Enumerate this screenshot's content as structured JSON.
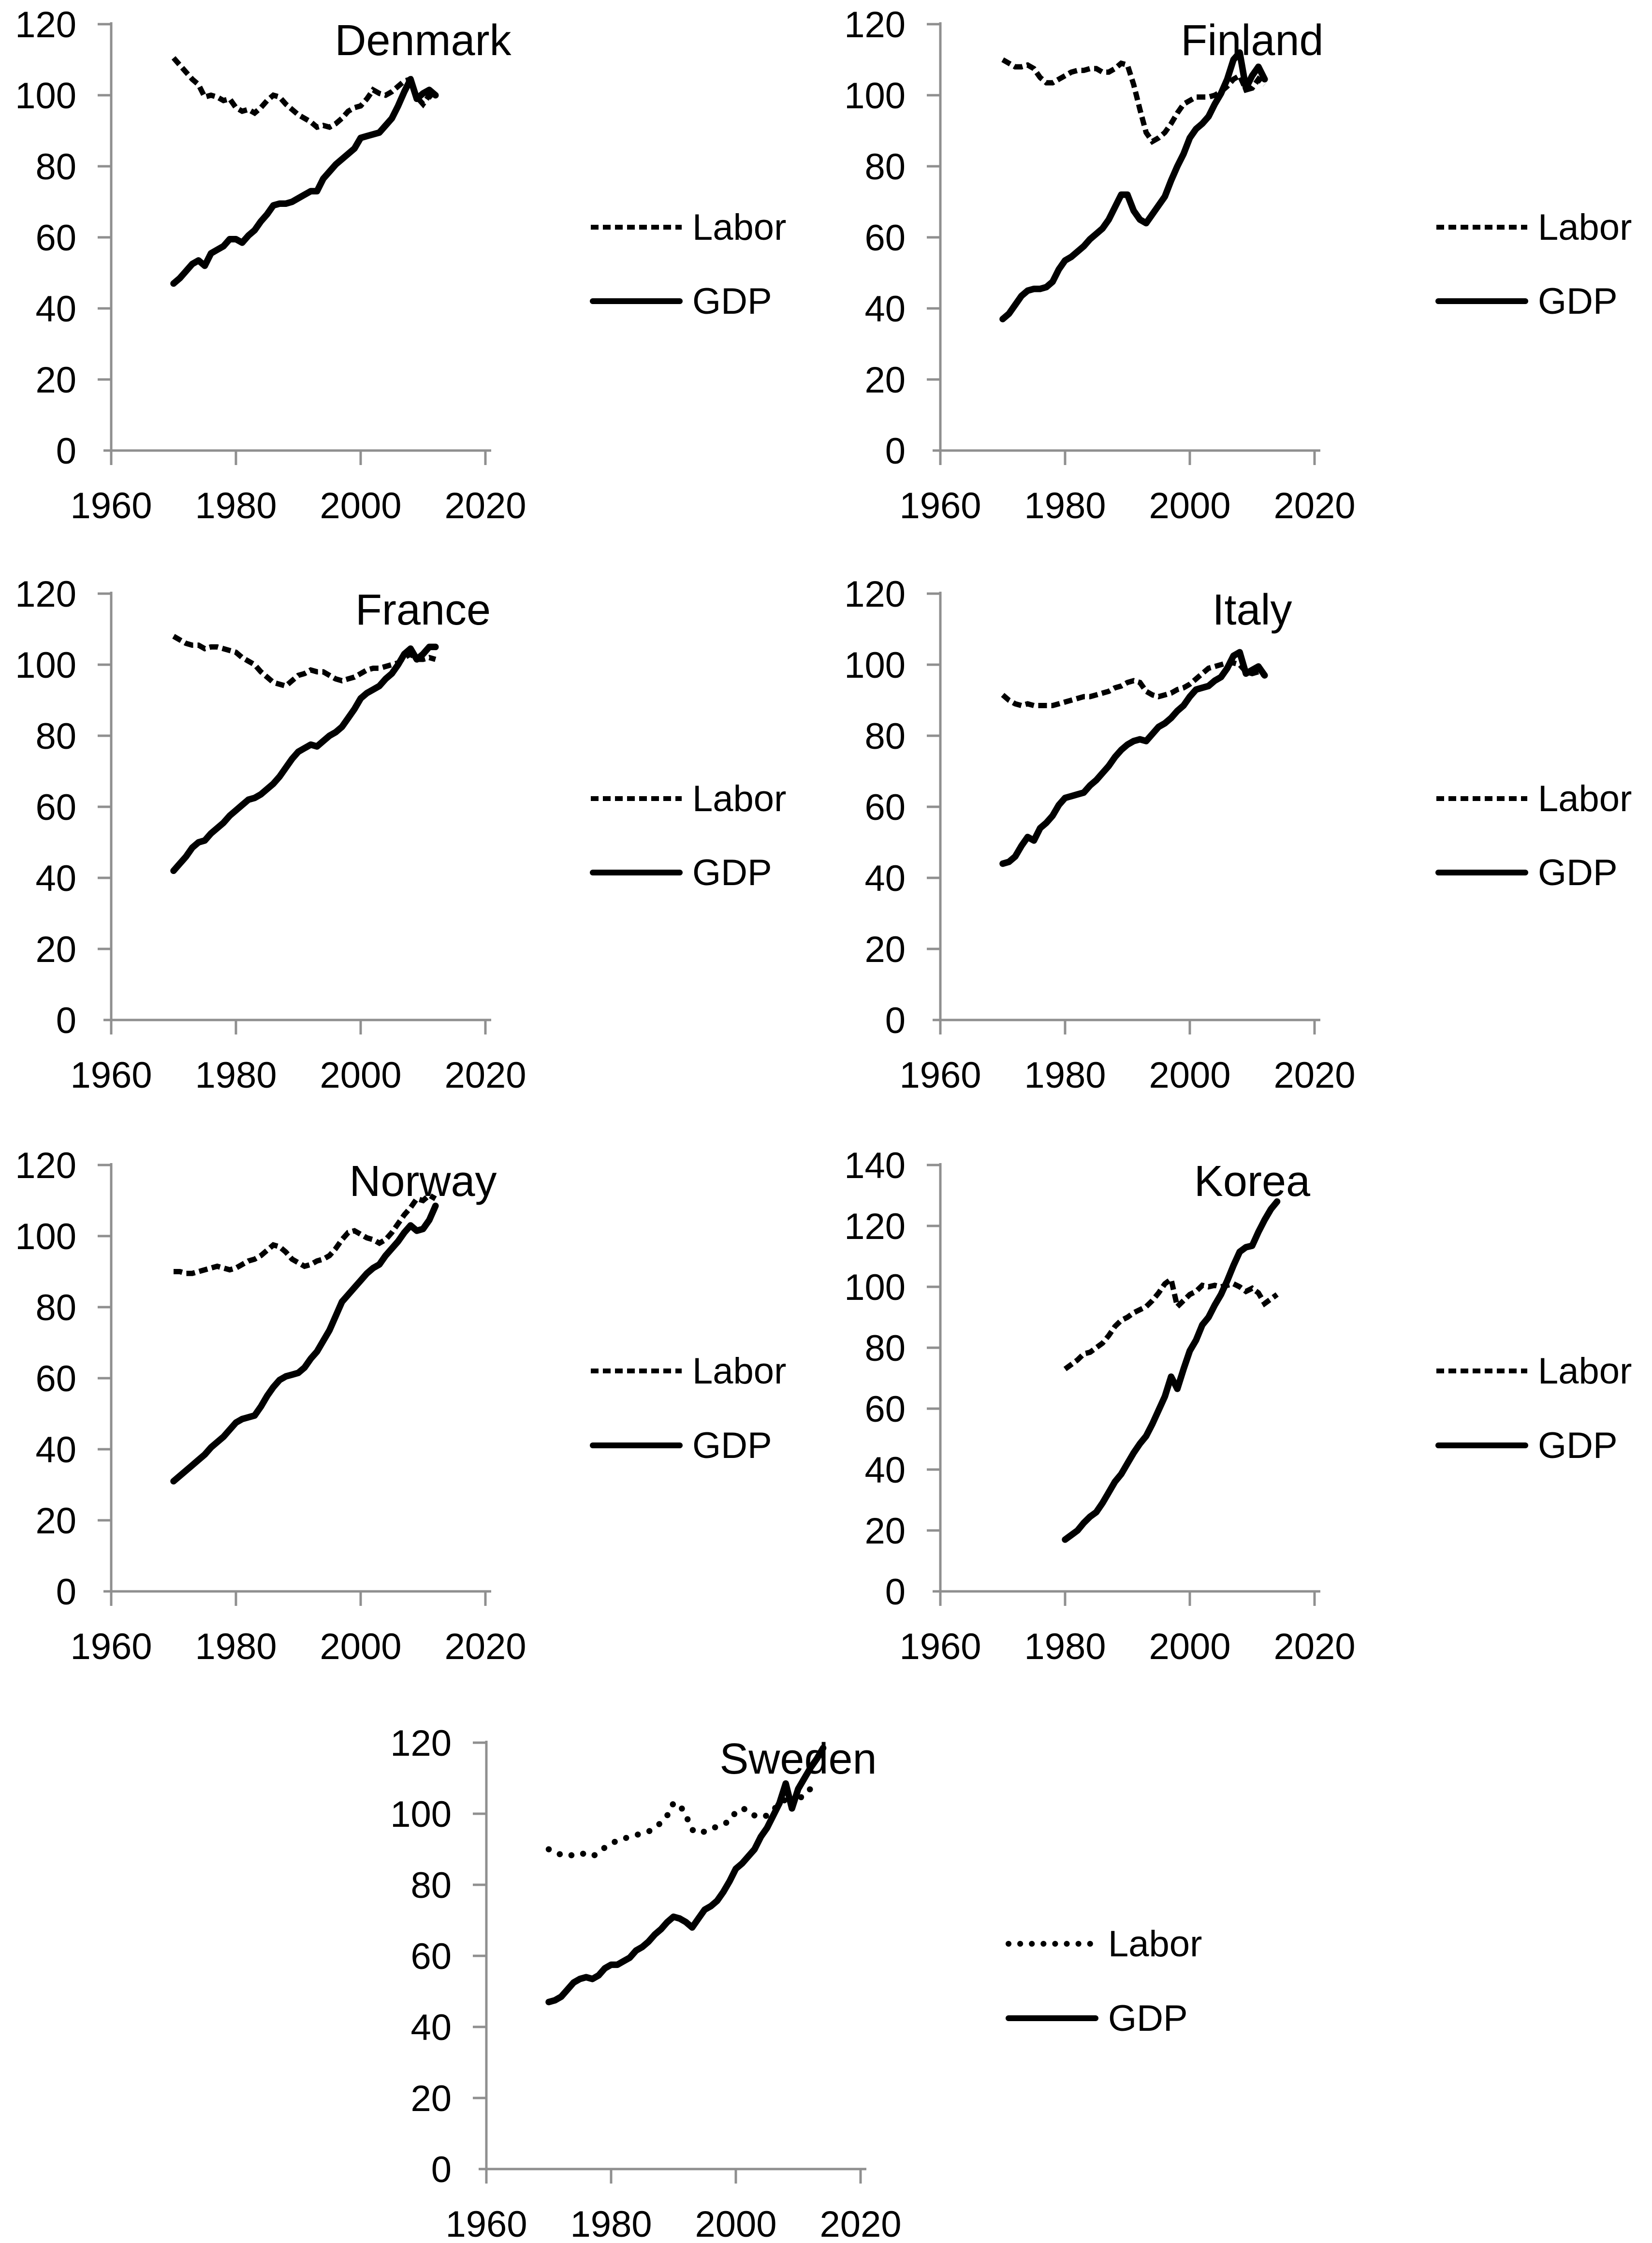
{
  "page": {
    "background": "#ffffff"
  },
  "colors": {
    "line": "#000000",
    "axis": "#8f8f8f",
    "text": "#000000"
  },
  "legend_labels": {
    "labor": "Labor",
    "gdp": "GDP"
  },
  "chart_data": [
    {
      "type": "line",
      "title": "Denmark",
      "xlabel": "",
      "ylabel": "",
      "xlim": [
        1960,
        2020
      ],
      "ylim": [
        0,
        120
      ],
      "x_ticks": [
        1960,
        1980,
        2000,
        2020
      ],
      "y_ticks": [
        0,
        20,
        40,
        60,
        80,
        100,
        120
      ],
      "grid": false,
      "legend_position": "right",
      "series": [
        {
          "name": "Labor",
          "style": "dotted",
          "start_year": 1970,
          "values": [
            110.5,
            108.5,
            106.5,
            104.5,
            103,
            99.5,
            100,
            99.5,
            98.5,
            99,
            96.5,
            95.5,
            96,
            95,
            96.5,
            98.5,
            100,
            99.5,
            97.5,
            96,
            94.5,
            93.5,
            92.5,
            91,
            91.5,
            91,
            92,
            93.5,
            95.5,
            96.5,
            97,
            99,
            101.5,
            100.5,
            100,
            101,
            102.5,
            104,
            104.5,
            99.5,
            97.5,
            100,
            98.5
          ]
        },
        {
          "name": "GDP",
          "style": "solid",
          "start_year": 1970,
          "values": [
            47,
            48.5,
            50.5,
            52.5,
            53.5,
            52,
            55.5,
            56.5,
            57.5,
            59.5,
            59.5,
            58.5,
            60.5,
            62,
            64.5,
            66.5,
            69,
            69.5,
            69.5,
            70,
            71,
            72,
            73,
            73,
            76.5,
            78.5,
            80.5,
            82,
            83.5,
            85,
            88,
            88.5,
            89,
            89.5,
            91.5,
            93.5,
            97,
            101,
            104.5,
            99,
            100.5,
            101.5,
            100
          ]
        }
      ]
    },
    {
      "type": "line",
      "title": "Finland",
      "xlabel": "",
      "ylabel": "",
      "xlim": [
        1960,
        2020
      ],
      "ylim": [
        0,
        120
      ],
      "x_ticks": [
        1960,
        1980,
        2000,
        2020
      ],
      "y_ticks": [
        0,
        20,
        40,
        60,
        80,
        100,
        120
      ],
      "grid": false,
      "legend_position": "right",
      "series": [
        {
          "name": "Labor",
          "style": "dotted",
          "start_year": 1970,
          "values": [
            110,
            109,
            108,
            108,
            108.5,
            107.5,
            105,
            103.5,
            103.5,
            104.5,
            105.5,
            106.5,
            107,
            107,
            107.5,
            107.5,
            106.5,
            106.5,
            107.5,
            109,
            108.5,
            103,
            96,
            89.5,
            87,
            88,
            89.5,
            92,
            95,
            97.5,
            98.5,
            99.5,
            99.5,
            99.5,
            100,
            101,
            102.5,
            104.5,
            105.5,
            101.5,
            102,
            104.5,
            103
          ]
        },
        {
          "name": "GDP",
          "style": "solid",
          "start_year": 1970,
          "values": [
            37,
            38.5,
            41,
            43.5,
            45,
            45.5,
            45.5,
            46,
            47.5,
            51,
            53.5,
            54.5,
            56,
            57.5,
            59.5,
            61,
            62.5,
            65,
            68.5,
            72,
            72,
            67.5,
            65,
            64,
            66.5,
            69,
            71.5,
            76,
            80,
            83.5,
            88,
            90.5,
            92,
            94,
            97.5,
            100.5,
            104.5,
            110,
            112,
            102,
            105.5,
            108,
            104.5
          ]
        }
      ]
    },
    {
      "type": "line",
      "title": "France",
      "xlabel": "",
      "ylabel": "",
      "xlim": [
        1960,
        2020
      ],
      "ylim": [
        0,
        120
      ],
      "x_ticks": [
        1960,
        1980,
        2000,
        2020
      ],
      "y_ticks": [
        0,
        20,
        40,
        60,
        80,
        100,
        120
      ],
      "grid": false,
      "legend_position": "right",
      "series": [
        {
          "name": "Labor",
          "style": "dotted",
          "start_year": 1970,
          "values": [
            108,
            107,
            106,
            105.5,
            105.5,
            104.5,
            105,
            105,
            104.5,
            104,
            103.5,
            102,
            101,
            100,
            98,
            96.5,
            95,
            94.5,
            94,
            95.5,
            97,
            97.5,
            98.5,
            98,
            98,
            97,
            96,
            95.5,
            96,
            96.5,
            97.5,
            98.5,
            99,
            99,
            99.5,
            100,
            100.5,
            102,
            103,
            101.5,
            101.5,
            102,
            101.5
          ]
        },
        {
          "name": "GDP",
          "style": "solid",
          "start_year": 1970,
          "values": [
            42,
            44,
            46,
            48.5,
            50,
            50.5,
            52.5,
            54,
            55.5,
            57.5,
            59,
            60.5,
            62,
            62.5,
            63.5,
            65,
            66.5,
            68.5,
            71,
            73.5,
            75.5,
            76.5,
            77.5,
            77,
            78.5,
            80,
            81,
            82.5,
            85,
            87.5,
            90.5,
            92,
            93,
            94,
            96,
            97.5,
            100,
            103,
            104.5,
            101.5,
            103,
            105,
            105
          ]
        }
      ]
    },
    {
      "type": "line",
      "title": "Italy",
      "xlabel": "",
      "ylabel": "",
      "xlim": [
        1960,
        2020
      ],
      "ylim": [
        0,
        120
      ],
      "x_ticks": [
        1960,
        1980,
        2000,
        2020
      ],
      "y_ticks": [
        0,
        20,
        40,
        60,
        80,
        100,
        120
      ],
      "grid": false,
      "legend_position": "right",
      "series": [
        {
          "name": "Labor",
          "style": "dotted",
          "start_year": 1970,
          "values": [
            91.5,
            90,
            89,
            88.5,
            89,
            88.5,
            88.5,
            88.5,
            88.5,
            89,
            89.5,
            90,
            90.5,
            91,
            91,
            91.5,
            92,
            92.5,
            93.5,
            94,
            95,
            95.5,
            95,
            92.5,
            91.5,
            91,
            91.5,
            92,
            93,
            93.5,
            94.5,
            96,
            97.5,
            99,
            99.5,
            100,
            100.5,
            100.5,
            100,
            98,
            97.5,
            98,
            97
          ]
        },
        {
          "name": "GDP",
          "style": "solid",
          "start_year": 1970,
          "values": [
            44,
            44.5,
            46,
            49,
            51.5,
            50.5,
            54,
            55.5,
            57.5,
            60.5,
            62.5,
            63,
            63.5,
            64,
            66,
            67.5,
            69.5,
            71.5,
            74,
            76,
            77.5,
            78.5,
            79,
            78.5,
            80.5,
            82.5,
            83.5,
            85,
            87,
            88.5,
            91,
            93,
            93.5,
            94,
            95.5,
            96.5,
            99,
            102.5,
            103.5,
            97.5,
            98.5,
            99.5,
            97
          ]
        }
      ]
    },
    {
      "type": "line",
      "title": "Norway",
      "xlabel": "",
      "ylabel": "",
      "xlim": [
        1960,
        2020
      ],
      "ylim": [
        0,
        120
      ],
      "x_ticks": [
        1960,
        1980,
        2000,
        2020
      ],
      "y_ticks": [
        0,
        20,
        40,
        60,
        80,
        100,
        120
      ],
      "grid": false,
      "legend_position": "right",
      "series": [
        {
          "name": "Labor",
          "style": "dotted",
          "start_year": 1970,
          "values": [
            90,
            90,
            89.5,
            89.5,
            90,
            90.5,
            91,
            91.5,
            91,
            90.5,
            91,
            92,
            93,
            93.5,
            94.5,
            96,
            97.5,
            97,
            95.5,
            93.5,
            92.5,
            91.5,
            92,
            93,
            93.5,
            94.5,
            96.5,
            99,
            101,
            101.5,
            100.5,
            99.5,
            99,
            98,
            99,
            101,
            103.5,
            106,
            108,
            110.5,
            110,
            111.5,
            110.5
          ]
        },
        {
          "name": "GDP",
          "style": "solid",
          "start_year": 1970,
          "values": [
            31,
            32.5,
            34,
            35.5,
            37,
            38.5,
            40.5,
            42,
            43.5,
            45.5,
            47.5,
            48.5,
            49,
            49.5,
            52,
            55,
            57.5,
            59.5,
            60.5,
            61,
            61.5,
            63,
            65.5,
            67.5,
            70.5,
            73.5,
            77.5,
            81.5,
            83.5,
            85.5,
            87.5,
            89.5,
            91,
            92,
            94.5,
            96.5,
            98.5,
            101,
            103,
            101.5,
            102,
            104.5,
            108.5
          ]
        }
      ]
    },
    {
      "type": "line",
      "title": "Korea",
      "xlabel": "",
      "ylabel": "",
      "xlim": [
        1960,
        2020
      ],
      "ylim": [
        0,
        140
      ],
      "x_ticks": [
        1960,
        1980,
        2000,
        2020
      ],
      "y_ticks": [
        0,
        20,
        40,
        60,
        80,
        100,
        120,
        140
      ],
      "grid": false,
      "legend_position": "right",
      "series": [
        {
          "name": "Labor",
          "style": "dotted",
          "start_year": 1980,
          "values": [
            73,
            74.5,
            76,
            78,
            78.5,
            80,
            81.5,
            84,
            87,
            89,
            90,
            91.5,
            92.5,
            93.5,
            95.5,
            98,
            101,
            102.5,
            93.5,
            95.5,
            97.5,
            98.5,
            100.5,
            100,
            100.5,
            100,
            100.5,
            101,
            100,
            98.5,
            99.5,
            98,
            94.5,
            96,
            97.5
          ]
        },
        {
          "name": "GDP",
          "style": "solid",
          "start_year": 1980,
          "values": [
            17,
            18.5,
            20,
            22.5,
            24.5,
            26,
            29,
            32.5,
            36,
            38.5,
            42,
            45.5,
            48.5,
            51,
            55,
            59.5,
            64,
            70.5,
            66.5,
            73,
            79,
            82.5,
            87.5,
            90,
            94,
            97.5,
            102,
            107,
            111.5,
            113,
            113.5,
            118,
            122,
            125.5,
            128
          ]
        }
      ]
    },
    {
      "type": "line",
      "title": "Sweden",
      "xlabel": "",
      "ylabel": "",
      "xlim": [
        1960,
        2020
      ],
      "ylim": [
        0,
        120
      ],
      "x_ticks": [
        1960,
        1980,
        2000,
        2020
      ],
      "y_ticks": [
        0,
        20,
        40,
        60,
        80,
        100,
        120
      ],
      "grid": false,
      "legend_position": "right",
      "series": [
        {
          "name": "Labor",
          "style": "dotted-round",
          "start_year": 1970,
          "values": [
            90,
            89,
            88.5,
            88,
            88.5,
            89,
            88.5,
            88,
            89,
            90.5,
            91.5,
            92.5,
            93,
            93.5,
            94,
            94.5,
            95,
            96,
            97.5,
            99.5,
            103,
            102.5,
            99.5,
            95.5,
            94.5,
            95,
            95.5,
            96.5,
            97,
            98,
            100.5,
            101.5,
            101,
            99.5,
            99,
            99.5,
            101,
            103,
            104,
            102,
            103.5,
            106,
            107
          ]
        },
        {
          "name": "GDP",
          "style": "solid",
          "start_year": 1970,
          "values": [
            47,
            47.5,
            48.5,
            50.5,
            52.5,
            53.5,
            54,
            53.5,
            54.5,
            56.5,
            57.5,
            57.5,
            58.5,
            59.5,
            61.5,
            62.5,
            64,
            66,
            67.5,
            69.5,
            71,
            70.5,
            69.5,
            68,
            70.5,
            73,
            74,
            75.5,
            78,
            81,
            84.5,
            86,
            88,
            90,
            93.5,
            96,
            99.5,
            103,
            108.5,
            101.5,
            107,
            110,
            113,
            115.5,
            118.5
          ]
        }
      ]
    }
  ]
}
